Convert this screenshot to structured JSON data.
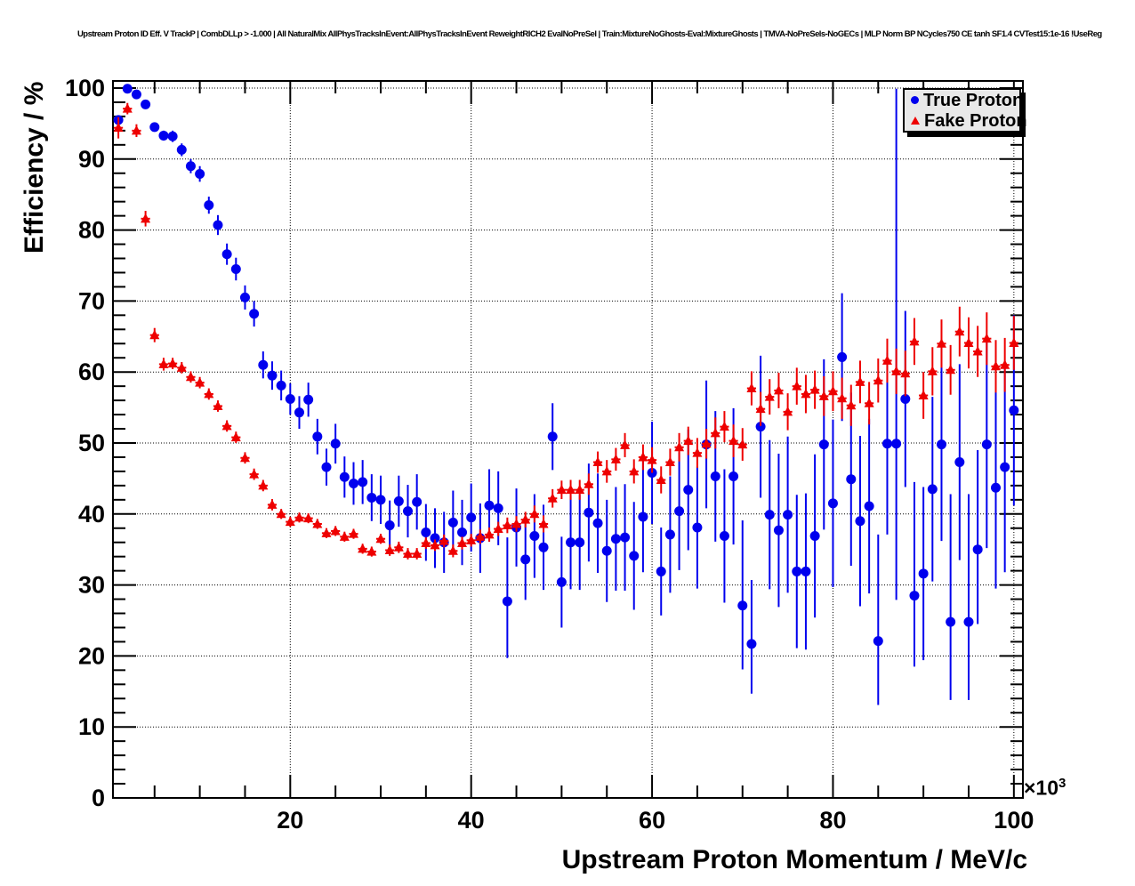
{
  "chart_data": {
    "type": "scatter",
    "title": "Upstream Proton ID Eff. V TrackP | CombDLLp > -1.000 | All NaturalMix AllPhysTracksInEvent:AllPhysTracksInEvent ReweightRICH2 EvalNoPreSel | Train:MixtureNoGhosts-Eval:MixtureGhosts | TMVA-NoPreSels-NoGECs | MLP Norm BP NCycles750 CE tanh SF1.4 CVTest15:1e-16 !UseReg",
    "xlabel": "Upstream Proton Momentum / MeV/c",
    "ylabel": "Efficiency / %",
    "x_axis_multiplier": {
      "base": "×10",
      "exponent": "3"
    },
    "xlim": [
      0.4,
      101
    ],
    "ylim": [
      0,
      101
    ],
    "x_ticks": [
      20,
      40,
      60,
      80,
      100
    ],
    "y_ticks": [
      0,
      10,
      20,
      30,
      40,
      50,
      60,
      70,
      80,
      90,
      100
    ],
    "x_minor_step": 5,
    "y_minor_step": 2,
    "grid": true,
    "grid_style": "dotted",
    "legend_position": "top-right",
    "bin_width": 1,
    "series": [
      {
        "name": "True Proton",
        "marker": "circle",
        "color": "#0000ee",
        "x": [
          1,
          2,
          3,
          4,
          5,
          6,
          7,
          8,
          9,
          10,
          11,
          12,
          13,
          14,
          15,
          16,
          17,
          18,
          19,
          20,
          21,
          22,
          23,
          24,
          25,
          26,
          27,
          28,
          29,
          30,
          31,
          32,
          33,
          34,
          35,
          36,
          37,
          38,
          39,
          40,
          41,
          42,
          43,
          44,
          45,
          46,
          47,
          48,
          49,
          50,
          51,
          52,
          53,
          54,
          55,
          56,
          57,
          58,
          59,
          60,
          61,
          62,
          63,
          64,
          65,
          66,
          67,
          68,
          69,
          70,
          71,
          72,
          73,
          74,
          75,
          76,
          77,
          78,
          79,
          80,
          81,
          82,
          83,
          84,
          85,
          86,
          87,
          88,
          89,
          90,
          91,
          92,
          93,
          94,
          95,
          96,
          97,
          98,
          99,
          100
        ],
        "y": [
          95.5,
          99.9,
          99.1,
          97.7,
          94.5,
          93.3,
          93.2,
          91.3,
          89.0,
          87.9,
          83.5,
          80.7,
          76.6,
          74.5,
          70.5,
          68.2,
          61.0,
          59.5,
          58.1,
          56.2,
          54.3,
          56.1,
          50.9,
          46.6,
          49.9,
          45.2,
          44.3,
          44.5,
          42.3,
          42.0,
          38.4,
          41.8,
          40.4,
          41.7,
          37.4,
          36.6,
          36.0,
          38.8,
          37.4,
          39.5,
          36.6,
          41.2,
          40.8,
          27.7,
          38.1,
          33.6,
          36.9,
          35.3,
          50.9,
          30.4,
          36.0,
          36.0,
          40.2,
          38.7,
          34.8,
          36.5,
          36.7,
          34.1,
          39.6,
          45.8,
          31.9,
          37.1,
          40.4,
          43.4,
          38.1,
          49.8,
          45.3,
          36.9,
          45.3,
          27.1,
          21.7,
          52.3,
          39.9,
          37.7,
          39.9,
          31.9,
          31.9,
          36.9,
          49.8,
          41.5,
          62.1,
          44.9,
          39.0,
          41.1,
          22.1,
          49.9,
          49.9,
          56.2,
          28.5,
          31.6,
          43.5,
          49.8,
          24.8,
          47.3,
          24.8,
          35.0,
          49.8,
          43.7,
          46.6,
          54.6
        ],
        "yerr": [
          0.6,
          0.15,
          0.3,
          0.4,
          0.6,
          0.7,
          0.8,
          0.9,
          1.0,
          1.1,
          1.2,
          1.4,
          1.5,
          1.6,
          1.7,
          1.8,
          1.9,
          2.0,
          2.1,
          2.2,
          2.3,
          2.4,
          2.5,
          2.6,
          2.8,
          2.9,
          3.0,
          3.1,
          3.3,
          3.4,
          3.5,
          3.6,
          3.7,
          3.9,
          4.0,
          4.2,
          4.3,
          4.5,
          4.6,
          4.8,
          4.9,
          5.1,
          5.2,
          8.5,
          5.5,
          5.7,
          5.9,
          6.0,
          4.7,
          6.4,
          6.6,
          6.7,
          6.9,
          7.0,
          7.2,
          7.3,
          7.5,
          7.6,
          7.8,
          7.2,
          6.2,
          8.2,
          8.3,
          8.5,
          8.6,
          9.0,
          9.2,
          9.4,
          9.6,
          10.5,
          8.0,
          10.0,
          10.5,
          10.8,
          11.0,
          10.8,
          11.0,
          11.5,
          12.0,
          11.8,
          9.0,
          12.2,
          12.0,
          12.3,
          10.0,
          12.8,
          13.0,
          12.4,
          11.8,
          12.2,
          13.0,
          13.6,
          12.0,
          13.8,
          12.4,
          10.5,
          14.6,
          14.2,
          14.8,
          13.4
        ],
        "yerr_asym": {
          "44": [
            8,
            9
          ],
          "70": [
            9,
            12
          ],
          "71": [
            7,
            9
          ],
          "85": [
            9,
            15
          ],
          "87": [
            22,
            50
          ],
          "89": [
            10,
            16
          ],
          "93": [
            11,
            18
          ],
          "95": [
            11,
            18
          ],
          "96": [
            10.5,
            14
          ]
        }
      },
      {
        "name": "Fake Proton",
        "marker": "triangle",
        "color": "#ee0000",
        "x": [
          1,
          2,
          3,
          4,
          5,
          6,
          7,
          8,
          9,
          10,
          11,
          12,
          13,
          14,
          15,
          16,
          17,
          18,
          19,
          20,
          21,
          22,
          23,
          24,
          25,
          26,
          27,
          28,
          29,
          30,
          31,
          32,
          33,
          34,
          35,
          36,
          37,
          38,
          39,
          40,
          41,
          42,
          43,
          44,
          45,
          46,
          47,
          48,
          49,
          50,
          51,
          52,
          53,
          54,
          55,
          56,
          57,
          58,
          59,
          60,
          61,
          62,
          63,
          64,
          65,
          66,
          67,
          68,
          69,
          70,
          71,
          72,
          73,
          74,
          75,
          76,
          77,
          78,
          79,
          80,
          81,
          82,
          83,
          84,
          85,
          86,
          87,
          88,
          89,
          90,
          91,
          92,
          93,
          94,
          95,
          96,
          97,
          98,
          99,
          100
        ],
        "y": [
          94.4,
          97.1,
          94.0,
          81.6,
          65.2,
          61.1,
          61.2,
          60.6,
          59.3,
          58.5,
          56.9,
          55.2,
          52.4,
          50.8,
          47.9,
          45.6,
          44.0,
          41.3,
          40.0,
          38.9,
          39.5,
          39.4,
          38.6,
          37.3,
          37.6,
          36.8,
          37.2,
          35.1,
          34.7,
          36.5,
          34.9,
          35.3,
          34.4,
          34.4,
          35.9,
          35.6,
          36.2,
          34.8,
          35.9,
          36.3,
          36.8,
          37.1,
          37.9,
          38.4,
          38.6,
          39.2,
          40.0,
          38.6,
          42.2,
          43.4,
          43.4,
          43.4,
          44.2,
          47.3,
          46.0,
          47.7,
          49.7,
          46.0,
          48.0,
          47.6,
          44.8,
          47.3,
          49.4,
          50.3,
          48.6,
          49.9,
          51.4,
          52.3,
          50.3,
          49.8,
          57.7,
          54.8,
          56.5,
          57.4,
          54.4,
          58.0,
          56.9,
          57.5,
          56.6,
          57.3,
          56.3,
          55.3,
          58.6,
          55.6,
          58.8,
          61.6,
          60.1,
          59.8,
          64.3,
          56.7,
          60.1,
          64.0,
          60.3,
          65.7,
          64.1,
          62.9,
          64.7,
          60.8,
          61.0,
          64.1
        ],
        "yerr": [
          1.5,
          0.8,
          0.9,
          1.1,
          1.0,
          0.9,
          0.8,
          0.8,
          0.8,
          0.8,
          0.8,
          0.8,
          0.8,
          0.8,
          0.8,
          0.8,
          0.8,
          0.8,
          0.7,
          0.7,
          0.7,
          0.7,
          0.7,
          0.7,
          0.7,
          0.7,
          0.7,
          0.7,
          0.7,
          0.7,
          0.8,
          0.8,
          0.8,
          0.8,
          0.8,
          0.8,
          0.9,
          0.9,
          0.9,
          0.9,
          1.0,
          1.0,
          1.0,
          1.1,
          1.1,
          1.1,
          1.2,
          1.2,
          1.3,
          1.3,
          1.4,
          1.4,
          1.5,
          1.5,
          1.6,
          1.6,
          1.7,
          1.7,
          1.8,
          1.8,
          1.9,
          1.9,
          2.0,
          2.0,
          2.1,
          2.1,
          2.2,
          2.2,
          2.3,
          2.3,
          2.4,
          2.4,
          2.5,
          2.5,
          2.6,
          2.6,
          2.7,
          2.7,
          2.8,
          2.8,
          2.9,
          2.9,
          3.0,
          3.0,
          3.1,
          3.1,
          3.2,
          3.2,
          3.3,
          3.3,
          3.4,
          3.4,
          3.5,
          3.5,
          3.6,
          3.6,
          3.7,
          3.7,
          3.8,
          3.8
        ],
        "yerr_asym": {}
      }
    ]
  }
}
